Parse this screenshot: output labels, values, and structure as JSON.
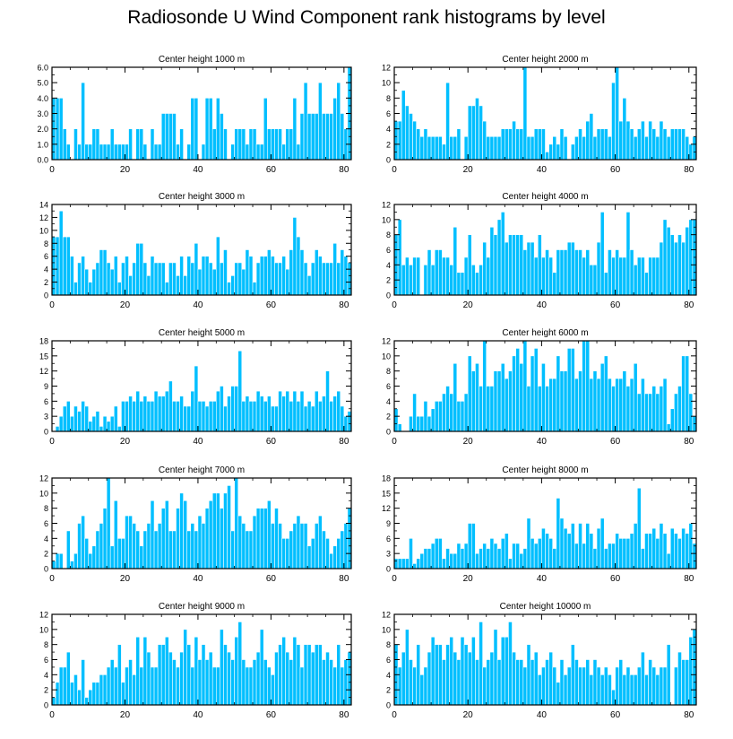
{
  "page": {
    "title": "Radiosonde U Wind Component rank histograms by level"
  },
  "style": {
    "bar_fill": "#00bfff",
    "bar_stroke": "#ffffff",
    "axis_color": "#000000"
  },
  "chart_data": [
    {
      "type": "bar",
      "title": "Center height 1000 m",
      "ylim": [
        0,
        6
      ],
      "yticks": [
        0,
        1,
        2,
        3,
        4,
        5,
        6
      ],
      "ytick_labels": [
        "0.0",
        "1.0",
        "2.0",
        "3.0",
        "4.0",
        "5.0",
        "6.0"
      ],
      "xlim": [
        0,
        82
      ],
      "xticks": [
        0,
        20,
        40,
        60,
        80
      ],
      "xtick_labels": [
        "0",
        "20",
        "40",
        "60",
        "80"
      ],
      "values": [
        4,
        4,
        4,
        2,
        1,
        0,
        2,
        1,
        5,
        1,
        1,
        2,
        2,
        1,
        1,
        1,
        2,
        1,
        1,
        1,
        1,
        2,
        0,
        2,
        2,
        1,
        0,
        2,
        1,
        1,
        3,
        3,
        3,
        3,
        1,
        2,
        0,
        1,
        4,
        4,
        0,
        1,
        4,
        4,
        2,
        4,
        3,
        2,
        0,
        1,
        2,
        2,
        2,
        1,
        2,
        2,
        1,
        1,
        4,
        2,
        2,
        2,
        2,
        1,
        2,
        2,
        4,
        1,
        3,
        5,
        3,
        3,
        3,
        5,
        3,
        3,
        3,
        4,
        5,
        3,
        2,
        6
      ]
    },
    {
      "type": "bar",
      "title": "Center height 2000 m",
      "ylim": [
        0,
        12
      ],
      "yticks": [
        0,
        2,
        4,
        6,
        8,
        10,
        12
      ],
      "ytick_labels": [
        "0",
        "2",
        "4",
        "6",
        "8",
        "10",
        "12"
      ],
      "xlim": [
        0,
        82
      ],
      "xticks": [
        0,
        20,
        40,
        60,
        80
      ],
      "xtick_labels": [
        "0",
        "20",
        "40",
        "60",
        "80"
      ],
      "values": [
        5,
        5,
        9,
        7,
        6,
        5,
        4,
        3,
        4,
        3,
        3,
        3,
        3,
        2,
        10,
        3,
        3,
        4,
        0,
        3,
        7,
        7,
        8,
        7,
        5,
        3,
        3,
        3,
        3,
        4,
        4,
        4,
        5,
        4,
        4,
        12,
        3,
        3,
        4,
        4,
        4,
        1,
        2,
        3,
        2,
        4,
        3,
        0,
        2,
        3,
        4,
        3,
        5,
        6,
        3,
        4,
        4,
        4,
        3,
        10,
        12,
        5,
        8,
        5,
        4,
        3,
        4,
        5,
        3,
        5,
        4,
        3,
        5,
        4,
        3,
        4,
        4,
        4,
        4,
        3,
        2,
        3
      ]
    },
    {
      "type": "bar",
      "title": "Center height 3000 m",
      "ylim": [
        0,
        14
      ],
      "yticks": [
        0,
        2,
        4,
        6,
        8,
        10,
        12,
        14
      ],
      "ytick_labels": [
        "0",
        "2",
        "4",
        "6",
        "8",
        "10",
        "12",
        "14"
      ],
      "xlim": [
        0,
        82
      ],
      "xticks": [
        0,
        20,
        40,
        60,
        80
      ],
      "xtick_labels": [
        "0",
        "20",
        "40",
        "60",
        "80"
      ],
      "values": [
        9,
        9,
        13,
        9,
        9,
        6,
        2,
        5,
        6,
        4,
        2,
        4,
        5,
        7,
        7,
        5,
        4,
        6,
        2,
        5,
        6,
        3,
        5,
        8,
        8,
        5,
        3,
        6,
        5,
        5,
        5,
        2,
        5,
        5,
        3,
        6,
        3,
        6,
        5,
        8,
        4,
        6,
        6,
        5,
        4,
        9,
        5,
        7,
        2,
        3,
        5,
        5,
        4,
        7,
        6,
        2,
        5,
        6,
        6,
        7,
        6,
        5,
        5,
        6,
        4,
        7,
        12,
        9,
        7,
        5,
        3,
        5,
        7,
        6,
        5,
        5,
        5,
        8,
        5,
        7,
        6,
        5
      ]
    },
    {
      "type": "bar",
      "title": "Center height 4000 m",
      "ylim": [
        0,
        12
      ],
      "yticks": [
        0,
        2,
        4,
        6,
        8,
        10,
        12
      ],
      "ytick_labels": [
        "0",
        "2",
        "4",
        "6",
        "8",
        "10",
        "12"
      ],
      "xlim": [
        0,
        82
      ],
      "xticks": [
        0,
        20,
        40,
        60,
        80
      ],
      "xtick_labels": [
        "0",
        "20",
        "40",
        "60",
        "80"
      ],
      "values": [
        8,
        10,
        4,
        5,
        4,
        5,
        5,
        0,
        4,
        6,
        4,
        6,
        6,
        5,
        5,
        4,
        9,
        3,
        3,
        5,
        8,
        4,
        3,
        4,
        7,
        5,
        9,
        8,
        10,
        11,
        7,
        8,
        8,
        8,
        8,
        6,
        7,
        7,
        5,
        8,
        5,
        6,
        5,
        3,
        6,
        6,
        6,
        7,
        7,
        6,
        6,
        5,
        6,
        4,
        4,
        7,
        11,
        3,
        6,
        5,
        6,
        5,
        5,
        11,
        6,
        4,
        5,
        5,
        3,
        5,
        5,
        5,
        7,
        10,
        9,
        8,
        7,
        8,
        7,
        9,
        10,
        10
      ]
    },
    {
      "type": "bar",
      "title": "Center height 5000 m",
      "ylim": [
        0,
        18
      ],
      "yticks": [
        0,
        3,
        6,
        9,
        12,
        15,
        18
      ],
      "ytick_labels": [
        "0",
        "3",
        "6",
        "9",
        "12",
        "15",
        "18"
      ],
      "xlim": [
        0,
        82
      ],
      "xticks": [
        0,
        20,
        40,
        60,
        80
      ],
      "xtick_labels": [
        "0",
        "20",
        "40",
        "60",
        "80"
      ],
      "values": [
        0,
        1,
        3,
        5,
        6,
        3,
        5,
        4,
        6,
        5,
        2,
        3,
        4,
        1,
        3,
        2,
        3,
        5,
        1,
        6,
        6,
        7,
        6,
        8,
        6,
        7,
        6,
        6,
        8,
        7,
        7,
        8,
        10,
        6,
        6,
        7,
        5,
        5,
        8,
        13,
        6,
        6,
        5,
        6,
        6,
        8,
        9,
        5,
        7,
        9,
        9,
        16,
        6,
        7,
        6,
        6,
        8,
        7,
        6,
        7,
        5,
        5,
        8,
        7,
        8,
        6,
        8,
        6,
        8,
        5,
        6,
        5,
        8,
        6,
        7,
        12,
        6,
        7,
        8,
        5,
        3,
        4
      ]
    },
    {
      "type": "bar",
      "title": "Center height 6000 m",
      "ylim": [
        0,
        12
      ],
      "yticks": [
        0,
        2,
        4,
        6,
        8,
        10,
        12
      ],
      "ytick_labels": [
        "0",
        "2",
        "4",
        "6",
        "8",
        "10",
        "12"
      ],
      "xlim": [
        0,
        82
      ],
      "xticks": [
        0,
        20,
        40,
        60,
        80
      ],
      "xtick_labels": [
        "0",
        "20",
        "40",
        "60",
        "80"
      ],
      "values": [
        3,
        1,
        0,
        0,
        2,
        5,
        2,
        2,
        4,
        2,
        3,
        4,
        4,
        5,
        6,
        5,
        9,
        4,
        4,
        5,
        10,
        8,
        9,
        6,
        12,
        6,
        6,
        8,
        8,
        9,
        7,
        8,
        10,
        11,
        9,
        12,
        6,
        10,
        11,
        6,
        9,
        6,
        7,
        7,
        10,
        8,
        8,
        11,
        11,
        7,
        8,
        12,
        12,
        7,
        8,
        7,
        9,
        10,
        7,
        6,
        7,
        7,
        8,
        6,
        7,
        9,
        5,
        7,
        5,
        5,
        6,
        5,
        6,
        7,
        1,
        3,
        5,
        6,
        10,
        10,
        5,
        2
      ]
    },
    {
      "type": "bar",
      "title": "Center height 7000 m",
      "ylim": [
        0,
        12
      ],
      "yticks": [
        0,
        2,
        4,
        6,
        8,
        10,
        12
      ],
      "ytick_labels": [
        "0",
        "2",
        "4",
        "6",
        "8",
        "10",
        "12"
      ],
      "xlim": [
        0,
        82
      ],
      "xticks": [
        0,
        20,
        40,
        60,
        80
      ],
      "xtick_labels": [
        "0",
        "20",
        "40",
        "60",
        "80"
      ],
      "values": [
        1,
        2,
        2,
        0,
        5,
        1,
        2,
        6,
        7,
        4,
        2,
        3,
        5,
        6,
        8,
        12,
        3,
        9,
        4,
        4,
        7,
        7,
        6,
        5,
        3,
        5,
        6,
        9,
        5,
        6,
        8,
        9,
        5,
        5,
        8,
        10,
        9,
        5,
        6,
        5,
        7,
        6,
        8,
        9,
        10,
        10,
        8,
        10,
        11,
        5,
        12,
        7,
        6,
        5,
        5,
        7,
        8,
        8,
        8,
        9,
        6,
        8,
        6,
        4,
        4,
        5,
        6,
        7,
        6,
        6,
        3,
        4,
        6,
        7,
        5,
        4,
        2,
        3,
        4,
        5,
        6,
        8
      ]
    },
    {
      "type": "bar",
      "title": "Center height 8000 m",
      "ylim": [
        0,
        18
      ],
      "yticks": [
        0,
        3,
        6,
        9,
        12,
        15,
        18
      ],
      "ytick_labels": [
        "0",
        "3",
        "6",
        "9",
        "12",
        "15",
        "18"
      ],
      "xlim": [
        0,
        82
      ],
      "xticks": [
        0,
        20,
        40,
        60,
        80
      ],
      "xtick_labels": [
        "0",
        "20",
        "40",
        "60",
        "80"
      ],
      "values": [
        2,
        2,
        2,
        2,
        6,
        1,
        2,
        3,
        4,
        4,
        5,
        6,
        6,
        2,
        4,
        3,
        3,
        5,
        4,
        5,
        9,
        9,
        3,
        4,
        5,
        4,
        6,
        5,
        4,
        6,
        7,
        2,
        5,
        5,
        3,
        4,
        10,
        6,
        5,
        6,
        8,
        7,
        6,
        4,
        14,
        10,
        8,
        7,
        9,
        5,
        9,
        5,
        9,
        7,
        4,
        8,
        10,
        4,
        5,
        5,
        7,
        6,
        6,
        6,
        7,
        9,
        16,
        4,
        7,
        7,
        8,
        6,
        9,
        7,
        3,
        8,
        7,
        6,
        8,
        7,
        9,
        5
      ]
    },
    {
      "type": "bar",
      "title": "Center height 9000 m",
      "ylim": [
        0,
        12
      ],
      "yticks": [
        0,
        2,
        4,
        6,
        8,
        10,
        12
      ],
      "ytick_labels": [
        "0",
        "2",
        "4",
        "6",
        "8",
        "10",
        "12"
      ],
      "xlim": [
        0,
        82
      ],
      "xticks": [
        0,
        20,
        40,
        60,
        80
      ],
      "xtick_labels": [
        "0",
        "20",
        "40",
        "60",
        "80"
      ],
      "values": [
        1,
        3,
        5,
        5,
        7,
        3,
        4,
        2,
        6,
        1,
        2,
        3,
        3,
        4,
        4,
        5,
        6,
        5,
        8,
        3,
        5,
        6,
        4,
        9,
        5,
        9,
        7,
        5,
        5,
        8,
        8,
        9,
        7,
        6,
        5,
        7,
        10,
        8,
        5,
        9,
        6,
        8,
        6,
        7,
        5,
        5,
        10,
        8,
        7,
        6,
        9,
        11,
        6,
        5,
        5,
        6,
        7,
        10,
        6,
        5,
        4,
        7,
        8,
        9,
        7,
        6,
        9,
        8,
        5,
        8,
        8,
        7,
        8,
        8,
        6,
        7,
        6,
        5,
        8,
        5,
        6,
        7
      ]
    },
    {
      "type": "bar",
      "title": "Center height 10000 m",
      "ylim": [
        0,
        12
      ],
      "yticks": [
        0,
        2,
        4,
        6,
        8,
        10,
        12
      ],
      "ytick_labels": [
        "0",
        "2",
        "4",
        "6",
        "8",
        "10",
        "12"
      ],
      "xlim": [
        0,
        82
      ],
      "xticks": [
        0,
        20,
        40,
        60,
        80
      ],
      "xtick_labels": [
        "0",
        "20",
        "40",
        "60",
        "80"
      ],
      "values": [
        8,
        5,
        7,
        10,
        6,
        5,
        8,
        4,
        5,
        7,
        9,
        8,
        8,
        6,
        8,
        9,
        7,
        6,
        9,
        8,
        7,
        9,
        6,
        11,
        5,
        6,
        7,
        10,
        6,
        9,
        9,
        11,
        7,
        6,
        6,
        5,
        8,
        6,
        7,
        4,
        5,
        6,
        7,
        5,
        3,
        6,
        4,
        5,
        8,
        6,
        5,
        5,
        6,
        4,
        6,
        5,
        4,
        5,
        4,
        2,
        5,
        6,
        4,
        5,
        4,
        4,
        5,
        7,
        4,
        6,
        5,
        4,
        5,
        5,
        8,
        0,
        5,
        7,
        6,
        6,
        9,
        10
      ]
    }
  ]
}
